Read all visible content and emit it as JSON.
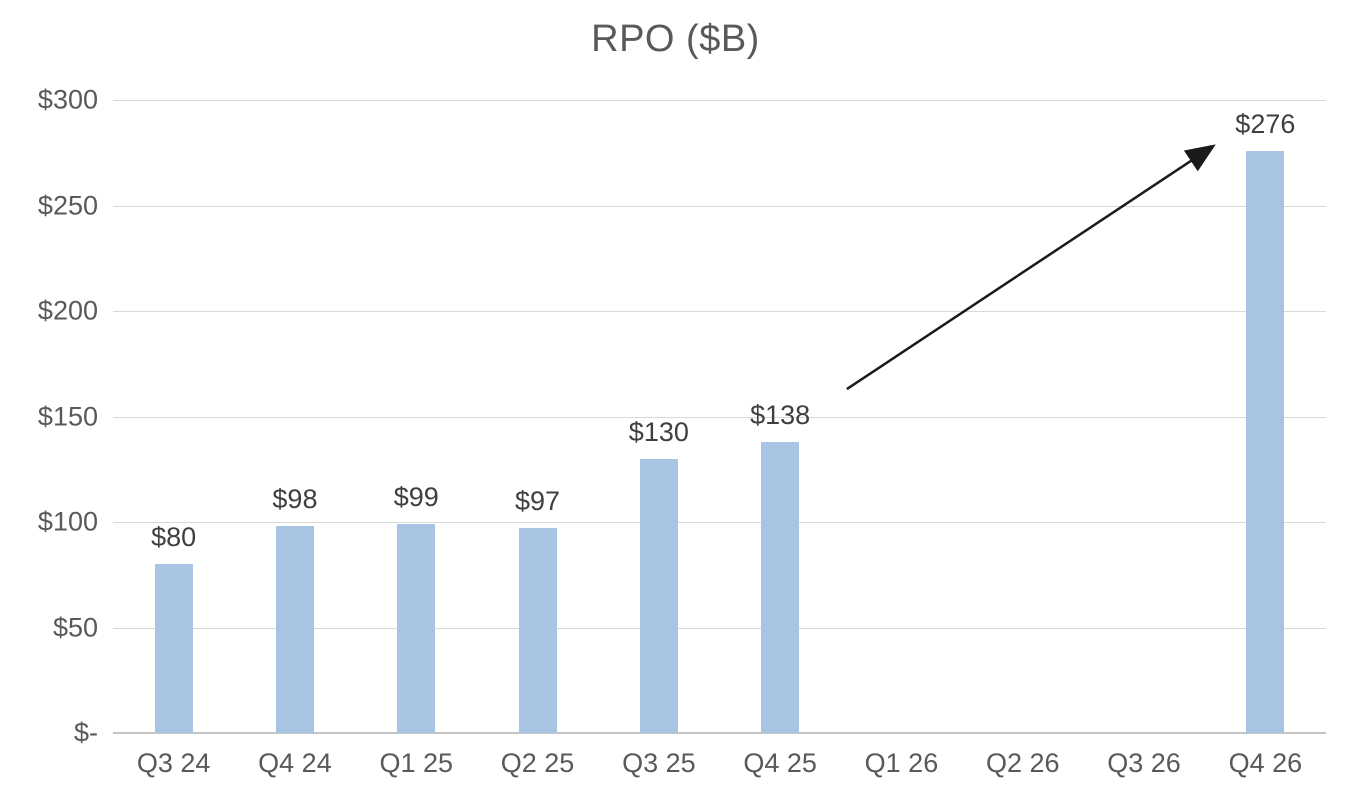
{
  "chart_data": {
    "type": "bar",
    "title": "RPO ($B)",
    "xlabel": "",
    "ylabel": "",
    "categories": [
      "Q3 24",
      "Q4 24",
      "Q1 25",
      "Q2 25",
      "Q3 25",
      "Q4 25",
      "Q1 26",
      "Q2 26",
      "Q3 26",
      "Q4 26"
    ],
    "values": [
      80,
      98,
      99,
      97,
      130,
      138,
      null,
      null,
      null,
      276
    ],
    "data_labels": [
      "$80",
      "$98",
      "$99",
      "$97",
      "$130",
      "$138",
      "",
      "",
      "",
      "$276"
    ],
    "ylim": [
      0,
      300
    ],
    "y_ticks": [
      0,
      50,
      100,
      150,
      200,
      250,
      300
    ],
    "y_tick_labels": [
      "$-",
      "$50",
      "$100",
      "$150",
      "$200",
      "$250",
      "$300"
    ],
    "grid": true,
    "legend": "none",
    "annotation_arrow": {
      "description": "straight black arrow pointing from just right of the $138 label up to the top of the Q4 26 bar",
      "from": {
        "x_frac": 0.605,
        "value": 163
      },
      "to": {
        "x_frac": 0.904,
        "value": 277
      }
    }
  },
  "colors": {
    "bar_fill": "#A7C4E3",
    "gridline": "#D9D9D9",
    "axis_line": "#C6C6C6",
    "title_text": "#595959",
    "tick_text": "#595959",
    "data_label_text": "#3F3F3F",
    "arrow": "#1A1A1A",
    "background": "#FFFFFF"
  }
}
